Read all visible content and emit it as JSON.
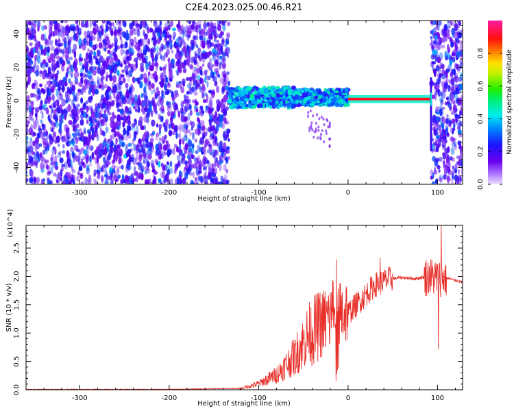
{
  "figure_title": "C2E4.2023.025.00.46.R21",
  "chart_data": [
    {
      "type": "heatmap",
      "xlabel": "Height of straight line (km)",
      "ylabel": "Frequency (Hz)",
      "xlim": [
        -360,
        128
      ],
      "ylim": [
        -50,
        48
      ],
      "xticks": [
        -300,
        -200,
        -100,
        0,
        100
      ],
      "yticks": [
        -40,
        -20,
        0,
        20,
        40
      ],
      "colorbar": {
        "label": "Normalized spectral amplitude",
        "range": [
          0,
          1
        ],
        "ticks": [
          "0.0",
          "0.2",
          "0.4",
          "0.6",
          "0.8"
        ],
        "colormap": "purple-blue-cyan-green-yellow-red-magenta"
      },
      "regions": [
        {
          "x_range": [
            -360,
            -133
          ],
          "y_range": [
            -50,
            48
          ],
          "amplitude": [
            0.1,
            0.3
          ],
          "description": "broadband noise"
        },
        {
          "x_range": [
            -133,
            0
          ],
          "center_freq": 2,
          "half_width": 6,
          "amplitude": [
            0.2,
            0.5
          ]
        },
        {
          "x_range": [
            0,
            92
          ],
          "center_freq": 1,
          "half_width": 1.5,
          "amplitude": [
            0.8,
            0.9
          ]
        },
        {
          "x_range": [
            93,
            128
          ],
          "y_range": [
            -50,
            48
          ],
          "amplitude": [
            0.1,
            0.3
          ],
          "description": "broadband noise"
        }
      ]
    },
    {
      "type": "line",
      "xlabel": "Height of straight line (km)",
      "ylabel": "SNR (10 * v/v)",
      "y_multiplier": "(x10^4)",
      "xlim": [
        -360,
        128
      ],
      "ylim": [
        0,
        2.9
      ],
      "xticks": [
        -300,
        -200,
        -100,
        0,
        100
      ],
      "yticks": [
        "0.0",
        "0.5",
        "1.0",
        "1.5",
        "2.0",
        "2.5"
      ],
      "color": "#e8302a",
      "envelope": [
        {
          "x": -360,
          "y": 0.0
        },
        {
          "x": -200,
          "y": 0.0
        },
        {
          "x": -120,
          "y": 0.02
        },
        {
          "x": -100,
          "y": 0.1
        },
        {
          "x": -80,
          "y": 0.25
        },
        {
          "x": -60,
          "y": 0.55
        },
        {
          "x": -45,
          "y": 0.9
        },
        {
          "x": -30,
          "y": 1.1
        },
        {
          "x": -15,
          "y": 1.25
        },
        {
          "x": 0,
          "y": 1.35
        },
        {
          "x": 15,
          "y": 1.6
        },
        {
          "x": 30,
          "y": 1.85
        },
        {
          "x": 45,
          "y": 1.95
        },
        {
          "x": 60,
          "y": 1.98
        },
        {
          "x": 75,
          "y": 1.96
        },
        {
          "x": 90,
          "y": 2.0
        },
        {
          "x": 110,
          "y": 1.97
        },
        {
          "x": 128,
          "y": 1.9
        }
      ],
      "peaks": [
        {
          "x": -13,
          "y": 2.3
        },
        {
          "x": 36,
          "y": 2.33
        },
        {
          "x": 104,
          "y": 2.9
        },
        {
          "x": 101,
          "y": 0.72
        }
      ]
    }
  ]
}
